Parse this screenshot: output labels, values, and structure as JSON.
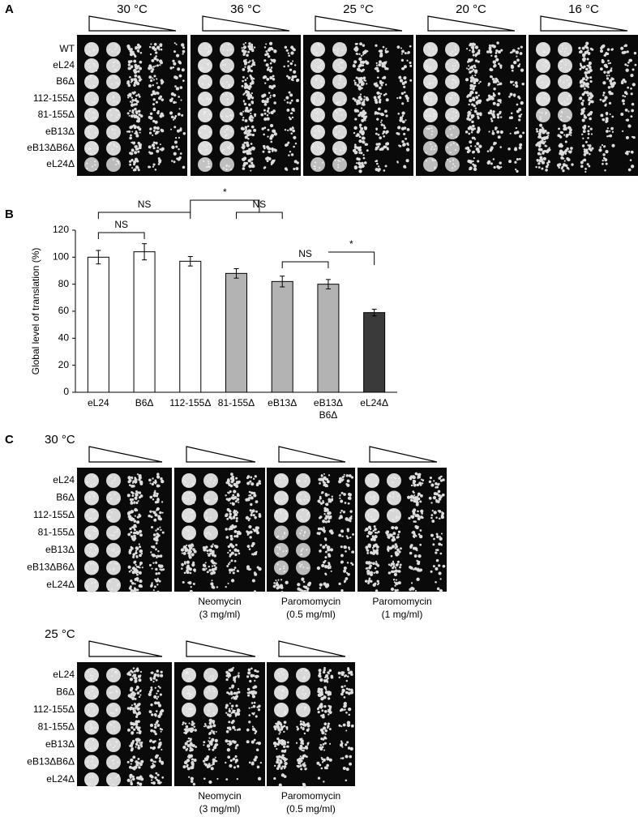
{
  "panel_a": {
    "label": "A",
    "temperatures": [
      "30 °C",
      "36 °C",
      "25 °C",
      "20 °C",
      "16 °C"
    ],
    "rows": [
      "WT",
      "eL24",
      "B6Δ",
      "112-155Δ",
      "81-155Δ",
      "eB13Δ",
      "eB13ΔB6Δ",
      "eL24Δ"
    ]
  },
  "chart_data": {
    "type": "bar",
    "panel_label": "B",
    "y_label": "Global level of translation (%)",
    "categories": [
      "eL24",
      "B6Δ",
      "112-155Δ",
      "81-155Δ",
      "eB13Δ",
      "eB13Δ\nB6Δ",
      "eL24Δ"
    ],
    "values": [
      100,
      104,
      97,
      88,
      82,
      80,
      59
    ],
    "errors": [
      5,
      6,
      3.5,
      3.5,
      4,
      3.5,
      2.5
    ],
    "colors": [
      "#ffffff",
      "#ffffff",
      "#ffffff",
      "#b3b3b3",
      "#b3b3b3",
      "#b3b3b3",
      "#3a3a3a"
    ],
    "ylim": [
      0,
      120
    ],
    "yticks": [
      0,
      20,
      40,
      60,
      80,
      100,
      120
    ],
    "annotations": [
      "NS",
      "NS",
      "*",
      "NS",
      "NS",
      "*"
    ]
  },
  "panel_c": {
    "label": "C",
    "blocks": [
      {
        "temperature": "30 °C",
        "rows": [
          "eL24",
          "B6Δ",
          "112-155Δ",
          "81-155Δ",
          "eB13Δ",
          "eB13ΔB6Δ",
          "eL24Δ"
        ],
        "conditions": [
          {
            "name": "Neomycin",
            "concentration": "(3 mg/ml)"
          },
          {
            "name": "Paromomycin",
            "concentration": "(0.5 mg/ml)"
          },
          {
            "name": "Paromomycin",
            "concentration": "(1 mg/ml)"
          }
        ]
      },
      {
        "temperature": "25 °C",
        "rows": [
          "eL24",
          "B6Δ",
          "112-155Δ",
          "81-155Δ",
          "eB13Δ",
          "eB13ΔB6Δ",
          "eL24Δ"
        ],
        "conditions": [
          {
            "name": "Neomycin",
            "concentration": "(3 mg/ml)"
          },
          {
            "name": "Paromomycin",
            "concentration": "(0.5 mg/ml)"
          }
        ]
      }
    ]
  }
}
